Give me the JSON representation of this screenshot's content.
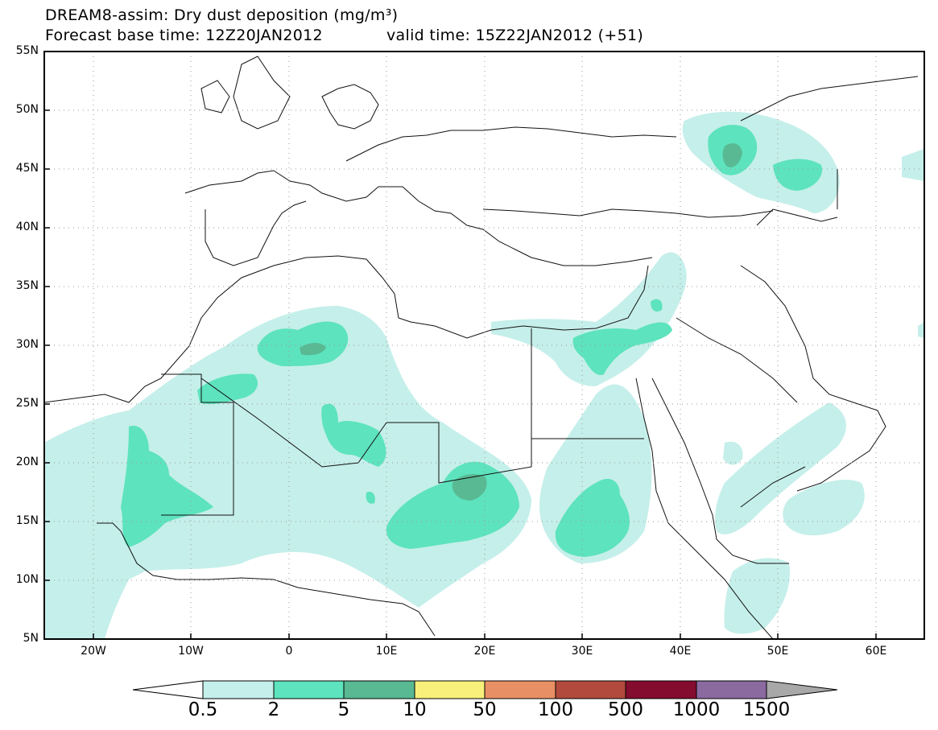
{
  "title": {
    "line1": "DREAM8-assim: Dry dust deposition (mg/m³)",
    "forecast_base": "Forecast base time: 12Z20JAN2012",
    "valid_time": "valid time: 15Z22JAN2012 (+51)"
  },
  "map": {
    "lat_ticks": [
      "55N",
      "50N",
      "45N",
      "40N",
      "35N",
      "30N",
      "25N",
      "20N",
      "15N",
      "10N",
      "5N"
    ],
    "lon_ticks": [
      "20W",
      "10W",
      "0",
      "10E",
      "20E",
      "30E",
      "40E",
      "50E",
      "60E"
    ],
    "lon_range": [
      -25,
      65
    ],
    "lat_range": [
      5,
      55
    ]
  },
  "colorbar": {
    "labels": [
      "0.5",
      "2",
      "5",
      "10",
      "50",
      "100",
      "500",
      "1000",
      "1500"
    ],
    "colors": [
      "#c5efea",
      "#5de3bd",
      "#58b993",
      "#f8f07a",
      "#e98f65",
      "#b24b3d",
      "#840c2e",
      "#8b6aa0",
      "#a8a8a8"
    ]
  }
}
